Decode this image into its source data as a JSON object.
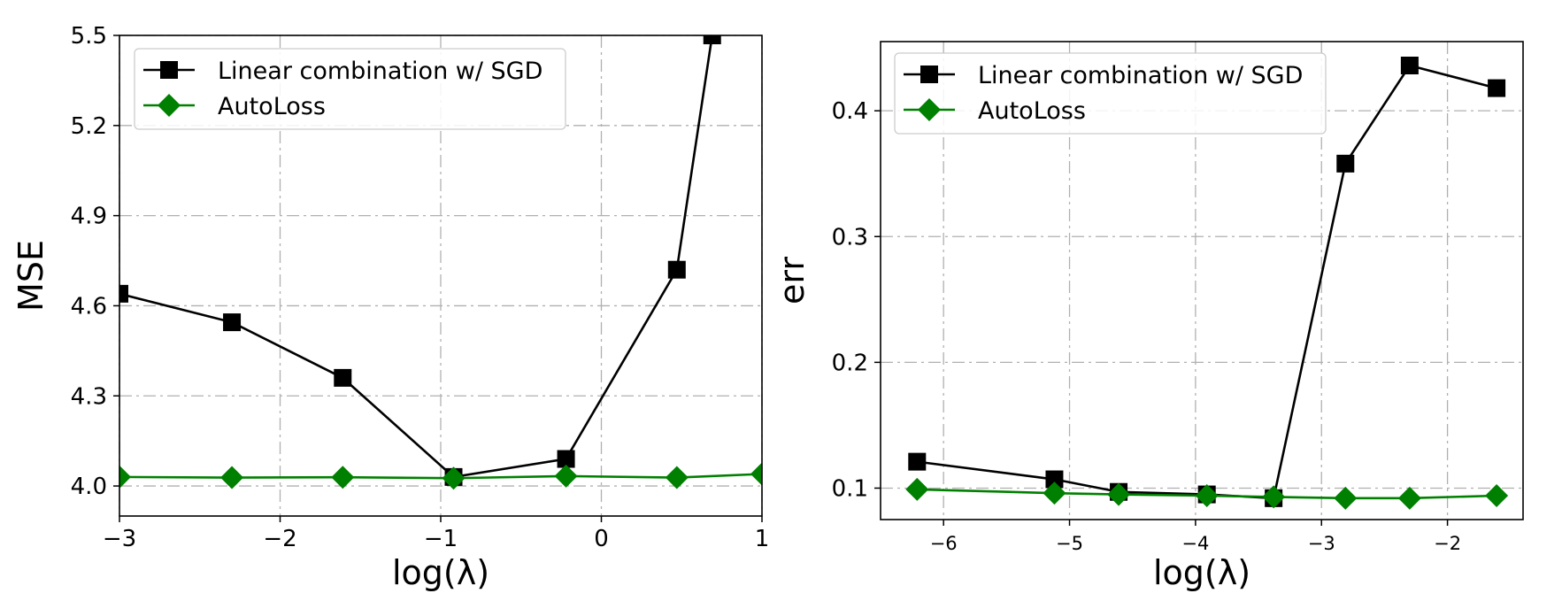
{
  "chart_data": [
    {
      "type": "line",
      "title": "",
      "xlabel": "log(λ)",
      "ylabel": "MSE",
      "xlim": [
        -3,
        1
      ],
      "ylim": [
        3.9,
        5.5
      ],
      "xticks": [
        -3,
        -2,
        -1,
        0,
        1
      ],
      "xtick_labels": [
        "−3",
        "−2",
        "−1",
        "0",
        "1"
      ],
      "yticks": [
        4.0,
        4.3,
        4.6,
        4.9,
        5.2,
        5.5
      ],
      "ytick_labels": [
        "4.0",
        "4.3",
        "4.6",
        "4.9",
        "5.2",
        "5.5"
      ],
      "grid": true,
      "legend_position": "top-left",
      "series": [
        {
          "name": "Linear combination w/ SGD",
          "color": "#000000",
          "marker": "square",
          "x": [
            -3.0,
            -2.3,
            -1.61,
            -0.92,
            -0.22,
            0.47,
            0.69
          ],
          "y": [
            4.64,
            4.545,
            4.36,
            4.03,
            4.09,
            4.72,
            5.5
          ]
        },
        {
          "name": "AutoLoss",
          "color": "#008000",
          "marker": "diamond",
          "x": [
            -3.0,
            -2.3,
            -1.61,
            -0.92,
            -0.22,
            0.47,
            1.0
          ],
          "y": [
            4.03,
            4.028,
            4.029,
            4.026,
            4.033,
            4.028,
            4.04
          ]
        }
      ]
    },
    {
      "type": "line",
      "title": "",
      "xlabel": "log(λ)",
      "ylabel": "err",
      "xlim": [
        -6.5,
        -1.4
      ],
      "ylim": [
        0.075,
        0.455
      ],
      "xticks": [
        -6,
        -5,
        -4,
        -3,
        -2
      ],
      "xtick_labels": [
        "−6",
        "−5",
        "−4",
        "−3",
        "−2"
      ],
      "yticks": [
        0.1,
        0.2,
        0.3,
        0.4
      ],
      "ytick_labels": [
        "0.1",
        "0.2",
        "0.3",
        "0.4"
      ],
      "grid": true,
      "legend_position": "top-left",
      "series": [
        {
          "name": "Linear combination w/ SGD",
          "color": "#000000",
          "marker": "square",
          "x": [
            -6.21,
            -5.12,
            -4.61,
            -3.91,
            -3.38,
            -2.81,
            -2.3,
            -1.61
          ],
          "y": [
            0.121,
            0.107,
            0.097,
            0.095,
            0.092,
            0.358,
            0.436,
            0.418
          ]
        },
        {
          "name": "AutoLoss",
          "color": "#008000",
          "marker": "diamond",
          "x": [
            -6.21,
            -5.12,
            -4.61,
            -3.91,
            -3.38,
            -2.81,
            -2.3,
            -1.61
          ],
          "y": [
            0.099,
            0.096,
            0.095,
            0.094,
            0.093,
            0.092,
            0.092,
            0.094
          ]
        }
      ]
    }
  ]
}
